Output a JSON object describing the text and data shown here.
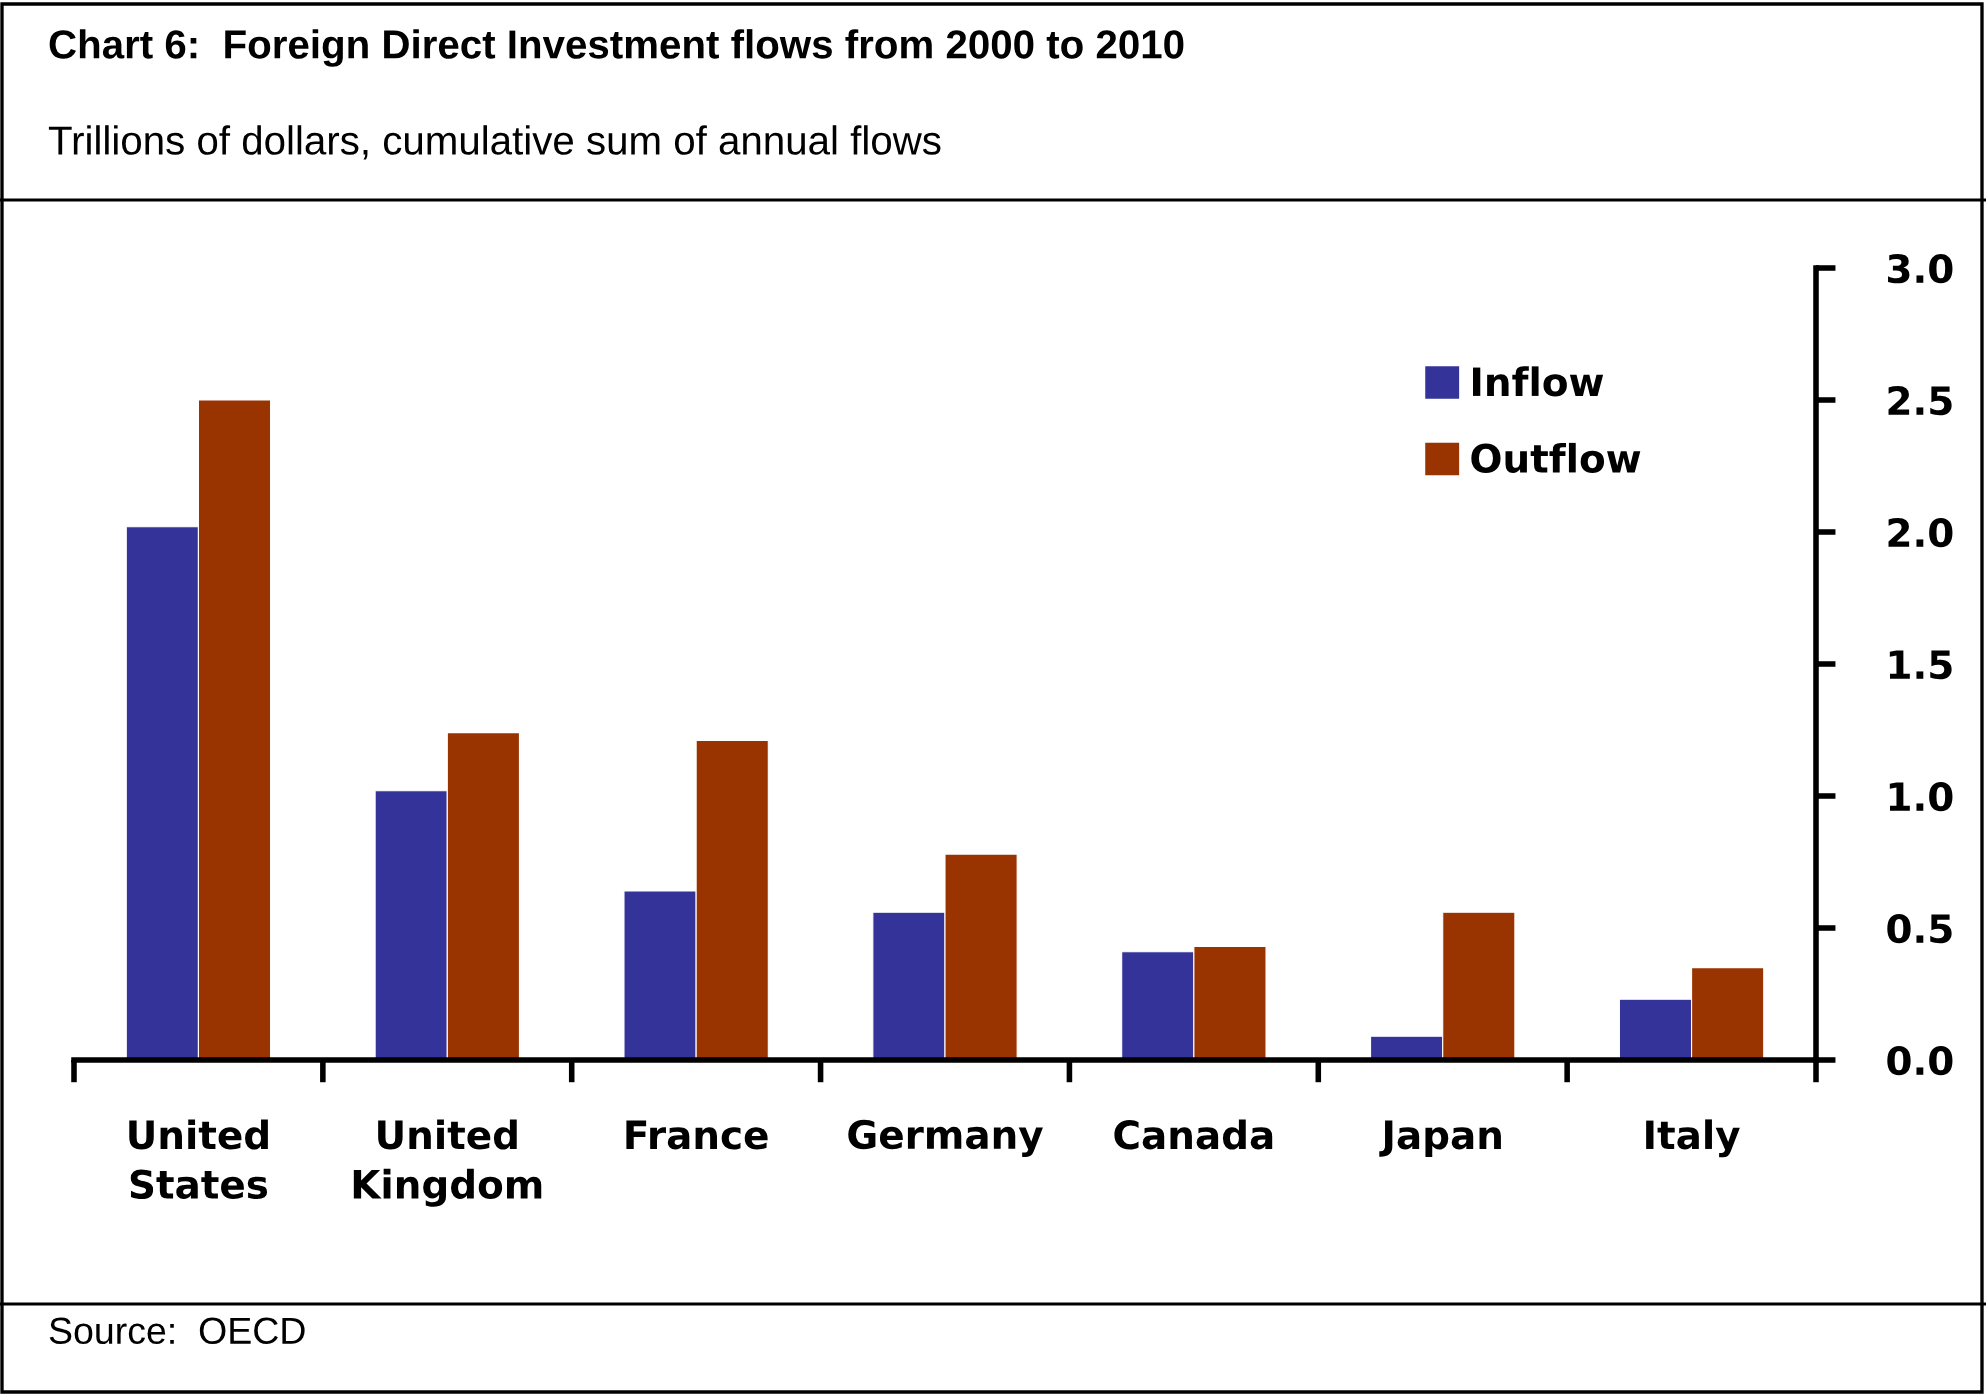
{
  "chart_data": {
    "type": "bar",
    "title": "Chart 6:  Foreign Direct Investment flows from 2000 to 2010",
    "subtitle": "Trillions of dollars, cumulative sum of annual flows",
    "categories": [
      "United\nStates",
      "United\nKingdom",
      "France",
      "Germany",
      "Canada",
      "Japan",
      "Italy"
    ],
    "series": [
      {
        "name": "Inflow",
        "color": "#333399",
        "values": [
          2.02,
          1.02,
          0.64,
          0.56,
          0.41,
          0.09,
          0.23
        ]
      },
      {
        "name": "Outflow",
        "color": "#993300",
        "values": [
          2.5,
          1.24,
          1.21,
          0.78,
          0.43,
          0.56,
          0.35
        ]
      }
    ],
    "ylim": [
      0,
      3.0
    ],
    "yticks": [
      {
        "value": 0,
        "label": "0.0"
      },
      {
        "value": 0.5,
        "label": "0.5"
      },
      {
        "value": 1.0,
        "label": "1.0"
      },
      {
        "value": 1.5,
        "label": "1.5"
      },
      {
        "value": 2.0,
        "label": "2.0"
      },
      {
        "value": 2.5,
        "label": "2.5"
      },
      {
        "value": 3.0,
        "label": "3.0"
      }
    ],
    "grid": false,
    "legend": "top right",
    "annotations": [
      "Source:  OECD"
    ]
  }
}
